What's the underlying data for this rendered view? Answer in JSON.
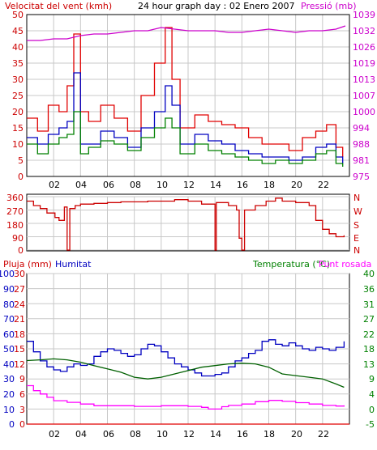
{
  "chart_data": [
    {
      "type": "line",
      "title": "24 hour graph day : 02 Enero 2007",
      "left_axis_label": "Velocitat del vent (kmh)",
      "right_axis_label": "Pressió (mb)",
      "x_labels": [
        "02",
        "04",
        "06",
        "08",
        "10",
        "12",
        "14",
        "16",
        "18",
        "20",
        "22"
      ],
      "x_range": [
        0,
        24
      ],
      "y_left_range": [
        0,
        50
      ],
      "y_left_ticks": [
        0,
        5,
        10,
        15,
        20,
        25,
        30,
        35,
        40,
        45,
        50
      ],
      "y_right_ticks": [
        975,
        981,
        988,
        994,
        1000,
        1007,
        1013,
        1019,
        1026,
        1032,
        1039
      ],
      "grid": true,
      "series": [
        {
          "key": "gust",
          "color": "#e00000",
          "points": [
            [
              0,
              18
            ],
            [
              0.8,
              14
            ],
            [
              1.6,
              22
            ],
            [
              2.4,
              20
            ],
            [
              3,
              28
            ],
            [
              3.5,
              44
            ],
            [
              4,
              20
            ],
            [
              4.6,
              17
            ],
            [
              5.5,
              22
            ],
            [
              6.5,
              18
            ],
            [
              7.5,
              14
            ],
            [
              8.5,
              25
            ],
            [
              9.5,
              35
            ],
            [
              10.3,
              46
            ],
            [
              10.8,
              30
            ],
            [
              11.4,
              15
            ],
            [
              12.5,
              19
            ],
            [
              13.5,
              17
            ],
            [
              14.5,
              16
            ],
            [
              15.5,
              15
            ],
            [
              16.5,
              12
            ],
            [
              17.5,
              10
            ],
            [
              18.5,
              10
            ],
            [
              19.5,
              8
            ],
            [
              20.5,
              12
            ],
            [
              21.5,
              14
            ],
            [
              22.3,
              16
            ],
            [
              23,
              9
            ],
            [
              23.5,
              6
            ]
          ]
        },
        {
          "key": "avg_blue",
          "color": "#0000c0",
          "points": [
            [
              0,
              12
            ],
            [
              0.8,
              10
            ],
            [
              1.6,
              13
            ],
            [
              2.4,
              15
            ],
            [
              3,
              17
            ],
            [
              3.5,
              32
            ],
            [
              4,
              10
            ],
            [
              4.6,
              10
            ],
            [
              5.5,
              14
            ],
            [
              6.5,
              12
            ],
            [
              7.5,
              9
            ],
            [
              8.5,
              15
            ],
            [
              9.5,
              20
            ],
            [
              10.3,
              28
            ],
            [
              10.8,
              22
            ],
            [
              11.4,
              10
            ],
            [
              12.5,
              13
            ],
            [
              13.5,
              11
            ],
            [
              14.5,
              10
            ],
            [
              15.5,
              8
            ],
            [
              16.5,
              7
            ],
            [
              17.5,
              6
            ],
            [
              18.5,
              6
            ],
            [
              19.5,
              5
            ],
            [
              20.5,
              6
            ],
            [
              21.5,
              9
            ],
            [
              22.3,
              10
            ],
            [
              23,
              6
            ],
            [
              23.5,
              4
            ]
          ]
        },
        {
          "key": "avg_green",
          "color": "#008000",
          "points": [
            [
              0,
              10
            ],
            [
              0.8,
              7
            ],
            [
              1.6,
              10
            ],
            [
              2.4,
              12
            ],
            [
              3,
              13
            ],
            [
              3.5,
              20
            ],
            [
              4,
              7
            ],
            [
              4.6,
              9
            ],
            [
              5.5,
              11
            ],
            [
              6.5,
              10
            ],
            [
              7.5,
              8
            ],
            [
              8.5,
              12
            ],
            [
              9.5,
              15
            ],
            [
              10.3,
              18
            ],
            [
              10.8,
              15
            ],
            [
              11.4,
              7
            ],
            [
              12.5,
              10
            ],
            [
              13.5,
              8
            ],
            [
              14.5,
              7
            ],
            [
              15.5,
              6
            ],
            [
              16.5,
              5
            ],
            [
              17.5,
              4
            ],
            [
              18.5,
              5
            ],
            [
              19.5,
              4
            ],
            [
              20.5,
              5
            ],
            [
              21.5,
              7
            ],
            [
              22.3,
              8
            ],
            [
              23,
              4
            ],
            [
              23.5,
              3
            ]
          ]
        },
        {
          "key": "pressure",
          "color": "#cc00cc",
          "axis": "right",
          "points": [
            [
              0,
              42
            ],
            [
              1,
              42
            ],
            [
              2,
              42.5
            ],
            [
              3,
              42.5
            ],
            [
              4,
              43.5
            ],
            [
              5,
              44
            ],
            [
              6,
              44
            ],
            [
              7,
              44.5
            ],
            [
              8,
              45
            ],
            [
              9,
              45
            ],
            [
              10,
              46
            ],
            [
              11,
              45.5
            ],
            [
              12,
              45
            ],
            [
              13,
              45
            ],
            [
              14,
              45
            ],
            [
              15,
              44.5
            ],
            [
              16,
              44.5
            ],
            [
              17,
              45
            ],
            [
              18,
              45.5
            ],
            [
              19,
              45
            ],
            [
              20,
              44.5
            ],
            [
              21,
              45
            ],
            [
              22,
              45
            ],
            [
              23,
              45.5
            ],
            [
              23.7,
              46.5
            ]
          ]
        }
      ]
    },
    {
      "type": "line",
      "x_range": [
        0,
        24
      ],
      "y_range": [
        0,
        360
      ],
      "y_ticks": [
        0,
        90,
        180,
        270,
        360
      ],
      "right_labels": [
        "N",
        "W",
        "S",
        "E",
        "N"
      ],
      "grid": true,
      "series": [
        {
          "key": "wind_dir",
          "color": "#cc0000",
          "points": [
            [
              0,
              330
            ],
            [
              0.5,
              300
            ],
            [
              1,
              280
            ],
            [
              1.5,
              250
            ],
            [
              2.1,
              220
            ],
            [
              2.4,
              200
            ],
            [
              2.8,
              290
            ],
            [
              3,
              0
            ],
            [
              3.2,
              280
            ],
            [
              3.6,
              300
            ],
            [
              4,
              310
            ],
            [
              5,
              315
            ],
            [
              6,
              320
            ],
            [
              7,
              325
            ],
            [
              8,
              325
            ],
            [
              9,
              330
            ],
            [
              10,
              330
            ],
            [
              11,
              340
            ],
            [
              12,
              330
            ],
            [
              13,
              310
            ],
            [
              13.9,
              310
            ],
            [
              14,
              0
            ],
            [
              14.1,
              320
            ],
            [
              15,
              300
            ],
            [
              15.6,
              270
            ],
            [
              15.8,
              80
            ],
            [
              16,
              0
            ],
            [
              16.2,
              270
            ],
            [
              17,
              300
            ],
            [
              17.8,
              330
            ],
            [
              18.5,
              350
            ],
            [
              19,
              330
            ],
            [
              20,
              320
            ],
            [
              21,
              300
            ],
            [
              21.5,
              200
            ],
            [
              22,
              140
            ],
            [
              22.5,
              110
            ],
            [
              23,
              90
            ],
            [
              23.6,
              100
            ]
          ]
        }
      ]
    },
    {
      "type": "line",
      "left_label_1": "Pluja (mm)",
      "left_label_2": "Humitat",
      "right_label": "Temperatura (°C)",
      "right_label_2": "Punt rosada",
      "x_range": [
        0,
        24
      ],
      "rain_ticks": [
        0,
        3,
        6,
        9,
        12,
        15,
        18,
        21,
        24,
        27,
        30
      ],
      "hum_ticks": [
        0,
        10,
        20,
        30,
        40,
        50,
        60,
        70,
        80,
        90,
        100
      ],
      "temp_ticks": [
        -5,
        0,
        4,
        9,
        13,
        18,
        22,
        27,
        31,
        36,
        40
      ],
      "grid": true,
      "series": [
        {
          "key": "humidity",
          "color": "#0000c0",
          "points": [
            [
              0,
              55
            ],
            [
              0.5,
              48
            ],
            [
              1,
              42
            ],
            [
              1.5,
              38
            ],
            [
              2,
              36
            ],
            [
              2.5,
              35
            ],
            [
              3,
              38
            ],
            [
              3.5,
              40
            ],
            [
              4,
              39
            ],
            [
              4.5,
              40
            ],
            [
              5,
              45
            ],
            [
              5.5,
              48
            ],
            [
              6,
              50
            ],
            [
              6.5,
              49
            ],
            [
              7,
              47
            ],
            [
              7.5,
              45
            ],
            [
              8,
              46
            ],
            [
              8.5,
              50
            ],
            [
              9,
              53
            ],
            [
              9.5,
              52
            ],
            [
              10,
              48
            ],
            [
              10.5,
              44
            ],
            [
              11,
              40
            ],
            [
              11.5,
              38
            ],
            [
              12,
              36
            ],
            [
              12.5,
              34
            ],
            [
              13,
              32
            ],
            [
              13.5,
              32
            ],
            [
              14,
              33
            ],
            [
              14.5,
              34
            ],
            [
              15,
              38
            ],
            [
              15.5,
              42
            ],
            [
              16,
              44
            ],
            [
              16.5,
              47
            ],
            [
              17,
              49
            ],
            [
              17.5,
              55
            ],
            [
              18,
              56
            ],
            [
              18.5,
              53
            ],
            [
              19,
              52
            ],
            [
              19.5,
              54
            ],
            [
              20,
              52
            ],
            [
              20.5,
              50
            ],
            [
              21,
              49
            ],
            [
              21.5,
              51
            ],
            [
              22,
              50
            ],
            [
              22.5,
              49
            ],
            [
              23,
              51
            ],
            [
              23.6,
              55
            ]
          ]
        },
        {
          "key": "temperature",
          "color": "#006000",
          "axis": "temp",
          "points": [
            [
              0,
              14
            ],
            [
              1,
              14.2
            ],
            [
              2,
              14.5
            ],
            [
              3,
              14.2
            ],
            [
              4,
              13.5
            ],
            [
              5,
              12.5
            ],
            [
              6,
              11.5
            ],
            [
              7,
              10.5
            ],
            [
              8,
              9
            ],
            [
              9,
              8.5
            ],
            [
              10,
              9
            ],
            [
              11,
              10
            ],
            [
              12,
              11
            ],
            [
              13,
              12
            ],
            [
              14,
              12.5
            ],
            [
              15,
              13
            ],
            [
              16,
              13.2
            ],
            [
              17,
              13
            ],
            [
              18,
              12
            ],
            [
              19,
              10
            ],
            [
              20,
              9.5
            ],
            [
              21,
              9
            ],
            [
              22,
              8.5
            ],
            [
              23,
              7
            ],
            [
              23.6,
              6
            ]
          ]
        },
        {
          "key": "dewpoint",
          "color": "#ff00ff",
          "axis": "temp",
          "points": [
            [
              0,
              6.5
            ],
            [
              0.5,
              5
            ],
            [
              1,
              4
            ],
            [
              1.5,
              3
            ],
            [
              2,
              2
            ],
            [
              3,
              1.5
            ],
            [
              4,
              1
            ],
            [
              5,
              0.5
            ],
            [
              6,
              0.5
            ],
            [
              7,
              0.5
            ],
            [
              8,
              0.3
            ],
            [
              9,
              0.3
            ],
            [
              10,
              0.5
            ],
            [
              11,
              0.5
            ],
            [
              12,
              0.3
            ],
            [
              13,
              0
            ],
            [
              13.5,
              -0.5
            ],
            [
              14,
              -0.5
            ],
            [
              14.5,
              0.2
            ],
            [
              15,
              0.6
            ],
            [
              16,
              1
            ],
            [
              17,
              1.7
            ],
            [
              18,
              2.1
            ],
            [
              19,
              1.8
            ],
            [
              20,
              1.4
            ],
            [
              21,
              1
            ],
            [
              22,
              0.6
            ],
            [
              23,
              0.4
            ],
            [
              23.6,
              0.6
            ]
          ]
        },
        {
          "key": "rain",
          "color": "#e00000",
          "axis": "rain",
          "points": [
            [
              0,
              0
            ],
            [
              24,
              0
            ]
          ]
        }
      ]
    }
  ]
}
